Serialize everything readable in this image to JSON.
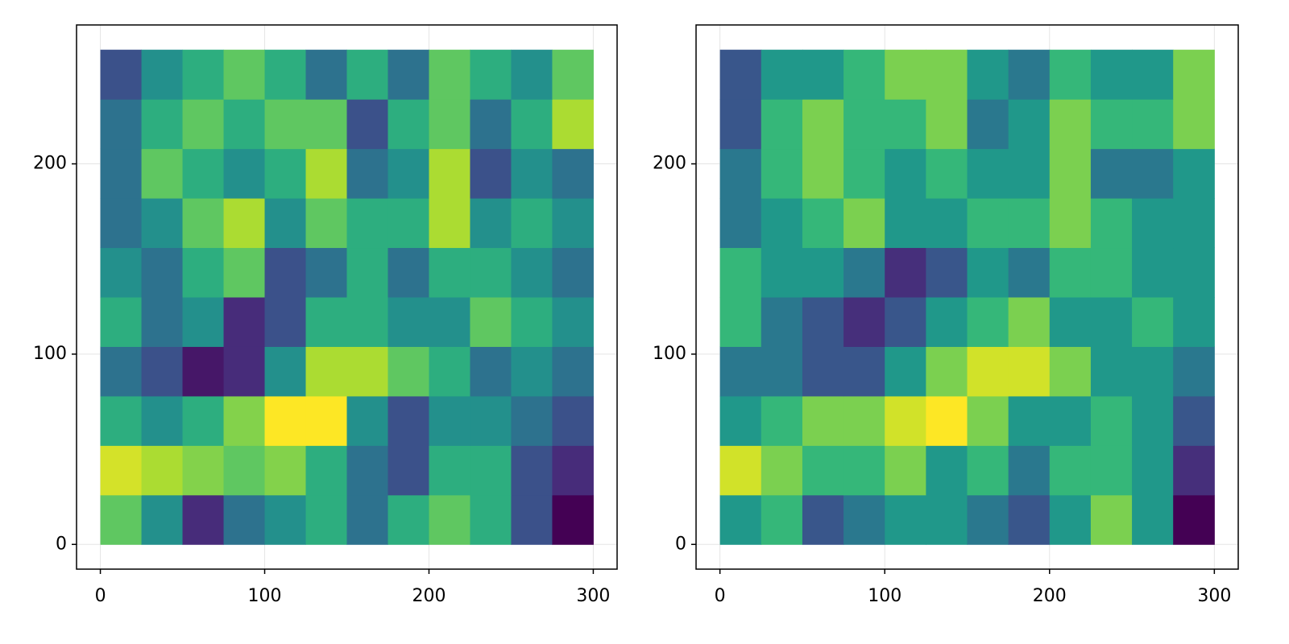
{
  "chart_data": [
    {
      "type": "heatmap",
      "colormap": "viridis",
      "grid": true,
      "x": [
        0,
        25,
        50,
        75,
        100,
        125,
        150,
        175,
        200,
        225,
        250,
        275,
        300
      ],
      "y": [
        0,
        26,
        52,
        78,
        104,
        130,
        156,
        182,
        208,
        234,
        260
      ],
      "z": [
        [
          0.7,
          0.5,
          0.2,
          0.4,
          0.5,
          0.6,
          0.4,
          0.6,
          0.7,
          0.6,
          0.3,
          0.1
        ],
        [
          0.85,
          0.8,
          0.75,
          0.7,
          0.75,
          0.6,
          0.4,
          0.3,
          0.6,
          0.6,
          0.3,
          0.2
        ],
        [
          0.6,
          0.5,
          0.6,
          0.75,
          0.9,
          0.9,
          0.5,
          0.3,
          0.5,
          0.5,
          0.4,
          0.3
        ],
        [
          0.4,
          0.3,
          0.15,
          0.2,
          0.5,
          0.8,
          0.8,
          0.7,
          0.6,
          0.4,
          0.5,
          0.4
        ],
        [
          0.6,
          0.4,
          0.5,
          0.2,
          0.3,
          0.6,
          0.6,
          0.5,
          0.5,
          0.7,
          0.6,
          0.5
        ],
        [
          0.5,
          0.4,
          0.6,
          0.7,
          0.3,
          0.4,
          0.6,
          0.4,
          0.6,
          0.6,
          0.5,
          0.4
        ],
        [
          0.4,
          0.5,
          0.7,
          0.8,
          0.5,
          0.7,
          0.6,
          0.6,
          0.8,
          0.5,
          0.6,
          0.5
        ],
        [
          0.4,
          0.7,
          0.6,
          0.5,
          0.6,
          0.8,
          0.4,
          0.5,
          0.8,
          0.3,
          0.5,
          0.4
        ],
        [
          0.4,
          0.6,
          0.7,
          0.6,
          0.7,
          0.7,
          0.3,
          0.6,
          0.7,
          0.4,
          0.6,
          0.8
        ],
        [
          0.3,
          0.5,
          0.6,
          0.7,
          0.6,
          0.4,
          0.6,
          0.4,
          0.7,
          0.6,
          0.5,
          0.7
        ]
      ],
      "xlim": [
        -14.5,
        314.5
      ],
      "ylim": [
        -13,
        273
      ],
      "xticks": [
        0,
        100,
        200,
        300
      ],
      "yticks": [
        0,
        100,
        200
      ]
    },
    {
      "type": "heatmap",
      "colormap": "viridis",
      "grid": true,
      "x": [
        0,
        25,
        50,
        75,
        100,
        125,
        150,
        175,
        200,
        225,
        250,
        275,
        300
      ],
      "y": [
        0,
        26,
        52,
        78,
        104,
        130,
        156,
        182,
        208,
        234,
        260
      ],
      "z": [
        [
          0.5,
          0.6,
          0.3,
          0.4,
          0.5,
          0.5,
          0.4,
          0.3,
          0.5,
          0.7,
          0.5,
          0.1
        ],
        [
          0.8,
          0.7,
          0.6,
          0.6,
          0.7,
          0.5,
          0.6,
          0.4,
          0.6,
          0.6,
          0.5,
          0.2
        ],
        [
          0.5,
          0.6,
          0.7,
          0.7,
          0.8,
          0.85,
          0.7,
          0.5,
          0.5,
          0.6,
          0.5,
          0.3
        ],
        [
          0.4,
          0.4,
          0.3,
          0.3,
          0.5,
          0.7,
          0.8,
          0.8,
          0.7,
          0.5,
          0.5,
          0.4
        ],
        [
          0.6,
          0.4,
          0.3,
          0.2,
          0.3,
          0.5,
          0.6,
          0.7,
          0.5,
          0.5,
          0.6,
          0.5
        ],
        [
          0.6,
          0.5,
          0.5,
          0.4,
          0.2,
          0.3,
          0.5,
          0.4,
          0.6,
          0.6,
          0.5,
          0.5
        ],
        [
          0.4,
          0.5,
          0.6,
          0.7,
          0.5,
          0.5,
          0.6,
          0.6,
          0.7,
          0.6,
          0.5,
          0.5
        ],
        [
          0.4,
          0.6,
          0.7,
          0.6,
          0.5,
          0.6,
          0.5,
          0.5,
          0.7,
          0.4,
          0.4,
          0.5
        ],
        [
          0.3,
          0.6,
          0.7,
          0.6,
          0.6,
          0.7,
          0.4,
          0.5,
          0.7,
          0.6,
          0.6,
          0.7
        ],
        [
          0.3,
          0.5,
          0.5,
          0.6,
          0.7,
          0.7,
          0.5,
          0.4,
          0.6,
          0.5,
          0.5,
          0.7
        ]
      ],
      "xlim": [
        -14.5,
        314.5
      ],
      "ylim": [
        -13,
        273
      ],
      "xticks": [
        0,
        100,
        200,
        300
      ],
      "yticks": [
        0,
        100,
        200
      ]
    }
  ]
}
